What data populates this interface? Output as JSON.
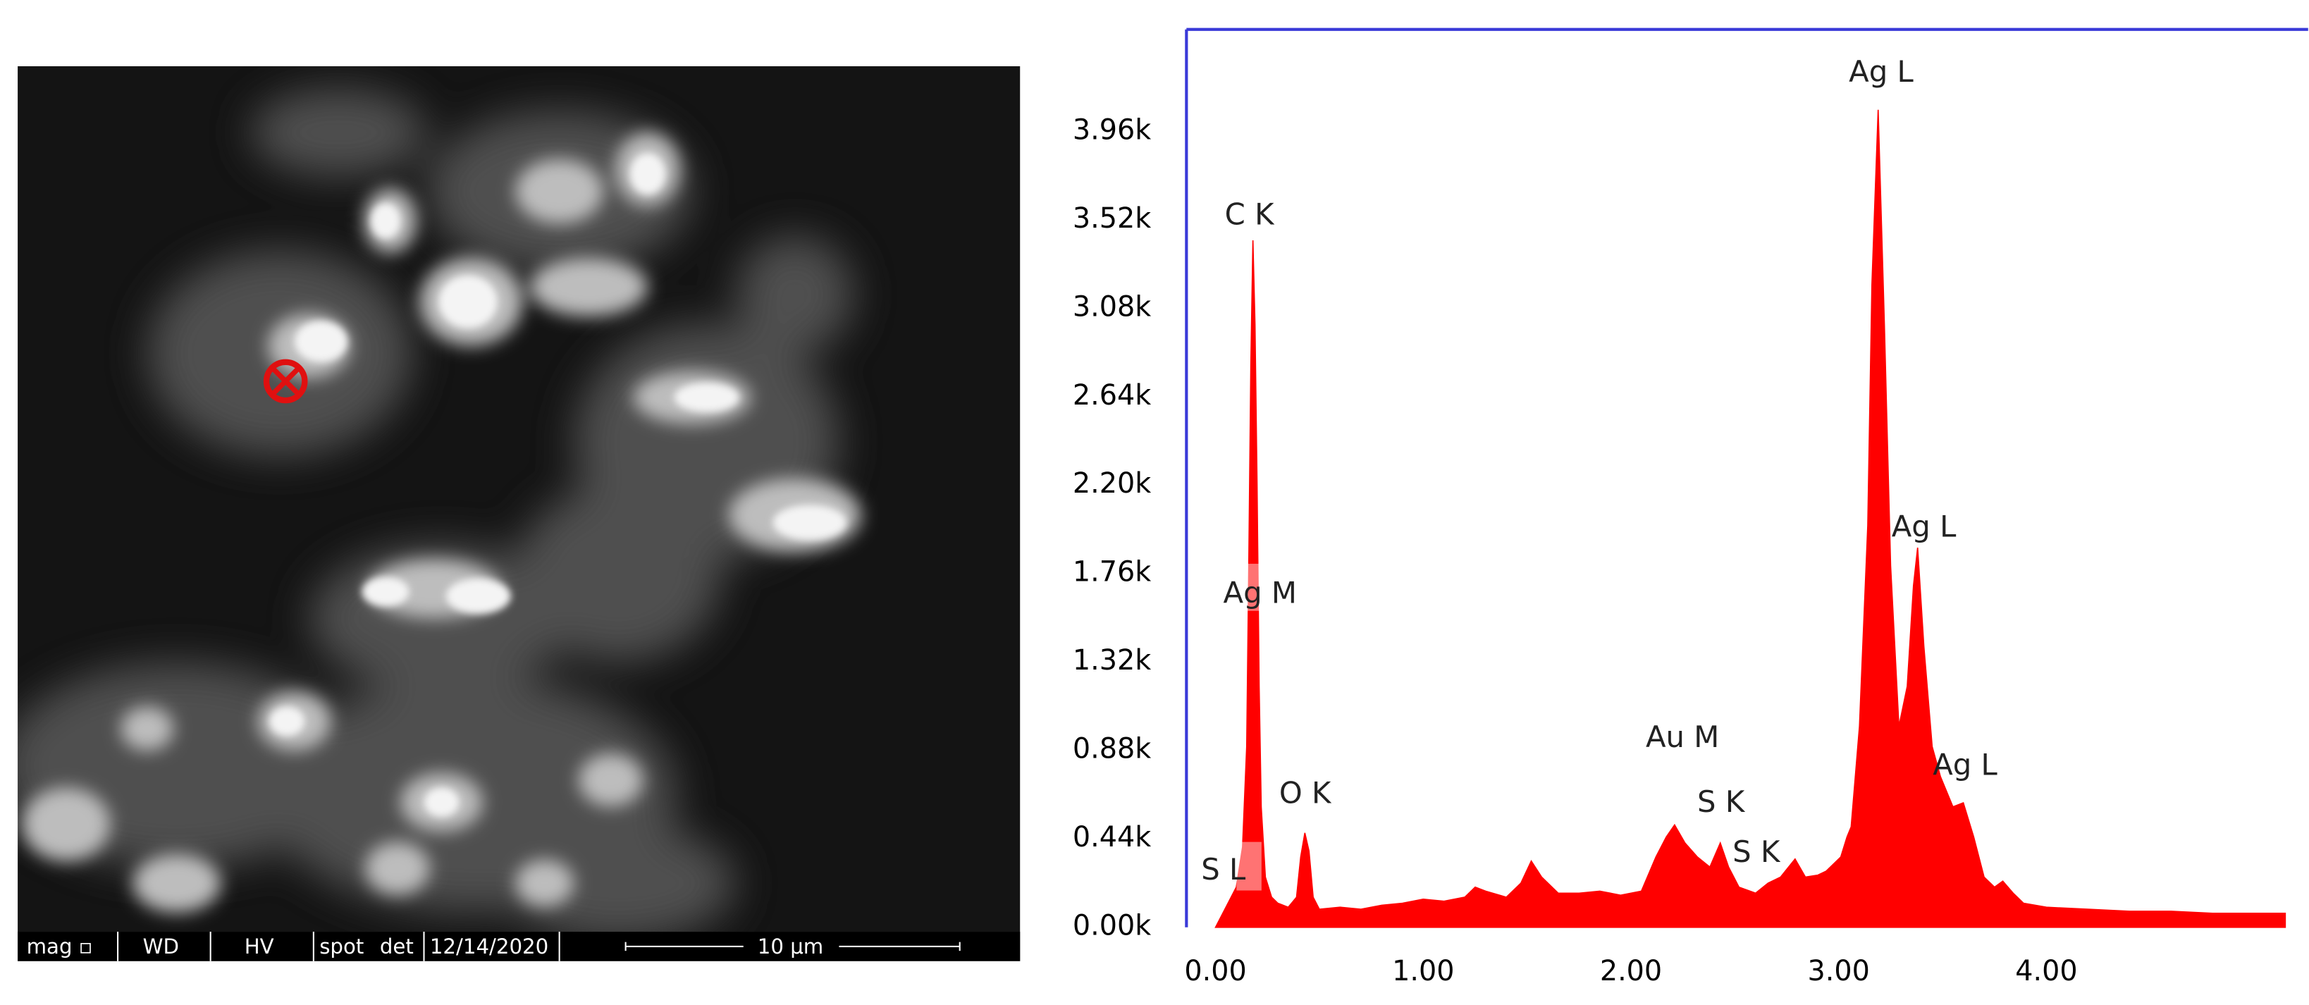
{
  "sem_image": {
    "info_bar": {
      "mag": "mag ▫",
      "wd": "WD",
      "hv": "HV",
      "spot": "spot",
      "det": "det",
      "date": "12/14/2020",
      "scale_bar": "10 μm"
    }
  },
  "chart_data": {
    "type": "area",
    "color": "#ff0000",
    "x": [
      0.0,
      0.05,
      0.1,
      0.13,
      0.15,
      0.16,
      0.17,
      0.18,
      0.19,
      0.2,
      0.21,
      0.22,
      0.24,
      0.27,
      0.3,
      0.35,
      0.39,
      0.41,
      0.43,
      0.45,
      0.47,
      0.5,
      0.6,
      0.7,
      0.8,
      0.9,
      1.0,
      1.1,
      1.2,
      1.25,
      1.3,
      1.4,
      1.47,
      1.52,
      1.57,
      1.65,
      1.75,
      1.85,
      1.95,
      2.05,
      2.12,
      2.17,
      2.21,
      2.26,
      2.32,
      2.38,
      2.43,
      2.47,
      2.52,
      2.6,
      2.66,
      2.72,
      2.79,
      2.84,
      2.9,
      2.94,
      3.01,
      3.04,
      3.06,
      3.1,
      3.14,
      3.16,
      3.19,
      3.22,
      3.25,
      3.29,
      3.33,
      3.36,
      3.38,
      3.41,
      3.45,
      3.49,
      3.55,
      3.6,
      3.65,
      3.7,
      3.75,
      3.79,
      3.84,
      3.89,
      4.0,
      4.2,
      4.4,
      4.6,
      4.8,
      5.0,
      5.15
    ],
    "values": [
      0.0,
      0.1,
      0.2,
      0.4,
      0.9,
      1.8,
      2.8,
      3.42,
      3.0,
      2.2,
      1.2,
      0.6,
      0.25,
      0.15,
      0.12,
      0.1,
      0.15,
      0.35,
      0.47,
      0.38,
      0.15,
      0.09,
      0.1,
      0.09,
      0.11,
      0.12,
      0.14,
      0.13,
      0.15,
      0.2,
      0.18,
      0.15,
      0.22,
      0.33,
      0.25,
      0.17,
      0.17,
      0.18,
      0.16,
      0.18,
      0.35,
      0.45,
      0.51,
      0.42,
      0.35,
      0.3,
      0.42,
      0.3,
      0.2,
      0.17,
      0.22,
      0.25,
      0.34,
      0.25,
      0.26,
      0.28,
      0.35,
      0.45,
      0.5,
      1.0,
      2.0,
      3.2,
      4.07,
      3.0,
      1.8,
      1.0,
      1.2,
      1.7,
      1.89,
      1.4,
      0.9,
      0.75,
      0.6,
      0.62,
      0.45,
      0.25,
      0.2,
      0.23,
      0.17,
      0.12,
      0.1,
      0.09,
      0.08,
      0.08,
      0.07,
      0.07,
      0.07
    ],
    "xlim": [
      -0.14,
      5.26
    ],
    "ylim": [
      0,
      4.47
    ],
    "xticks": [
      {
        "value": 0,
        "label": "0.00"
      },
      {
        "value": 1,
        "label": "1.00"
      },
      {
        "value": 2,
        "label": "2.00"
      },
      {
        "value": 3,
        "label": "3.00"
      },
      {
        "value": 4,
        "label": "4.00"
      }
    ],
    "yticks": [
      {
        "value": 0,
        "label": "0.00k"
      },
      {
        "value": 0.44,
        "label": "0.44k"
      },
      {
        "value": 0.88,
        "label": "0.88k"
      },
      {
        "value": 1.32,
        "label": "1.32k"
      },
      {
        "value": 1.76,
        "label": "1.76k"
      },
      {
        "value": 2.2,
        "label": "2.20k"
      },
      {
        "value": 2.64,
        "label": "2.64k"
      },
      {
        "value": 3.08,
        "label": "3.08k"
      },
      {
        "value": 3.52,
        "label": "3.52k"
      },
      {
        "value": 3.96,
        "label": "3.96k"
      }
    ],
    "annotations": [
      "Ag L",
      "C K",
      "Ag M",
      "Ag L",
      "Au M",
      "S K",
      "Ag L",
      "O K",
      "S K",
      "S L"
    ]
  }
}
